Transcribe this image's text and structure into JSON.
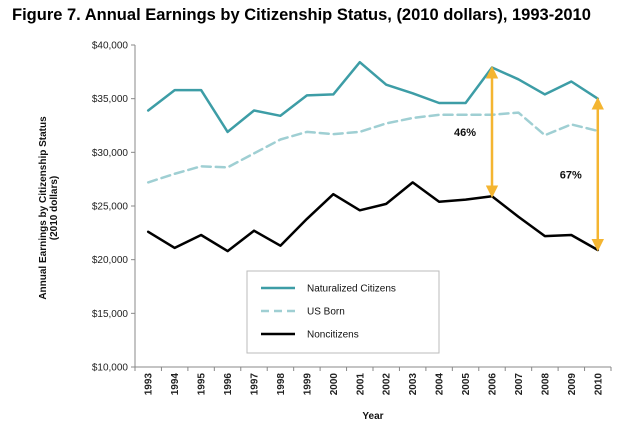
{
  "chart_data": {
    "type": "line",
    "title": "Figure 7. Annual Earnings by Citizenship Status, (2010 dollars), 1993-2010",
    "xlabel": "Year",
    "ylabel_lines": [
      "Annual Earnings by Citizenship Status",
      "(2010 dollars)"
    ],
    "ylim": [
      10000,
      40000
    ],
    "yticks": [
      {
        "value": 10000,
        "label": "$10,000"
      },
      {
        "value": 15000,
        "label": "$15,000"
      },
      {
        "value": 20000,
        "label": "$20,000"
      },
      {
        "value": 25000,
        "label": "$25,000"
      },
      {
        "value": 30000,
        "label": "$30,000"
      },
      {
        "value": 35000,
        "label": "$35,000"
      },
      {
        "value": 40000,
        "label": "$40,000"
      }
    ],
    "categories": [
      "1993",
      "1994",
      "1995",
      "1996",
      "1997",
      "1998",
      "1999",
      "2000",
      "2001",
      "2002",
      "2003",
      "2004",
      "2005",
      "2006",
      "2007",
      "2008",
      "2009",
      "2010"
    ],
    "series": [
      {
        "name": "Naturalized Citizens",
        "color": "#3d9da6",
        "dash": "solid",
        "values": [
          33900,
          35800,
          35800,
          31900,
          33900,
          33400,
          35300,
          35400,
          38400,
          36300,
          35500,
          34600,
          34600,
          37900,
          36800,
          35400,
          36600,
          35000
        ]
      },
      {
        "name": "US Born",
        "color": "#9fcfd3",
        "dash": "dashed",
        "values": [
          27200,
          28000,
          28700,
          28600,
          29900,
          31200,
          31900,
          31700,
          31900,
          32700,
          33200,
          33500,
          33500,
          33500,
          33700,
          31600,
          32600,
          32000
        ]
      },
      {
        "name": "Noncitizens",
        "color": "#000000",
        "dash": "solid",
        "values": [
          22600,
          21100,
          22300,
          20800,
          22700,
          21300,
          23800,
          26100,
          24600,
          25200,
          27200,
          25400,
          25600,
          25900,
          24000,
          22200,
          22300,
          20900
        ]
      }
    ],
    "annotations": [
      {
        "text": "46%",
        "year": "2006",
        "from": 25900,
        "to": 37900,
        "color": "#f4b531"
      },
      {
        "text": "67%",
        "year": "2010",
        "from": 20900,
        "to": 35000,
        "color": "#f4b531"
      }
    ],
    "grid": false,
    "legend": "bottom-center"
  }
}
